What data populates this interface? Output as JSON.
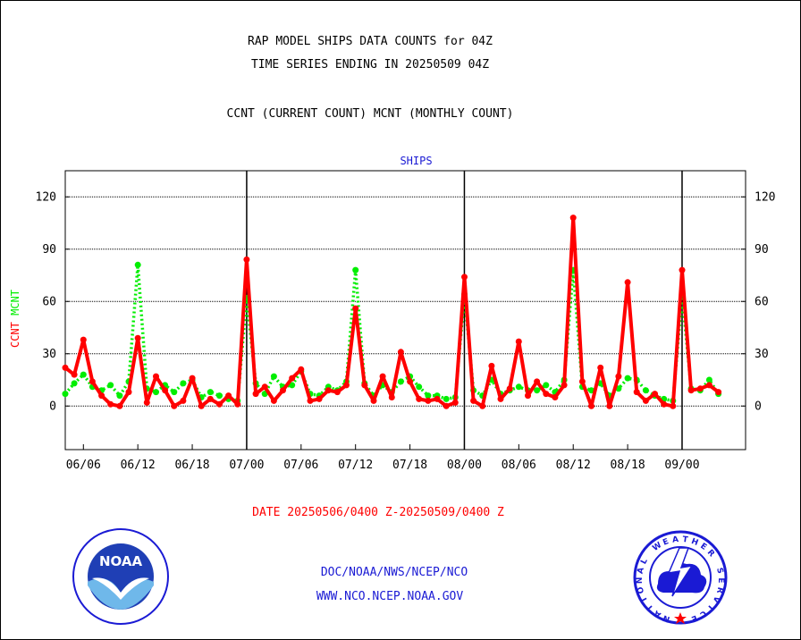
{
  "titles": {
    "line1": "RAP MODEL SHIPS DATA COUNTS for 04Z",
    "line2": "TIME SERIES ENDING IN 20250509 04Z",
    "line3": "CCNT (CURRENT COUNT) MCNT (MONTHLY COUNT)"
  },
  "date_range": "DATE 20250506/0400 Z-20250509/0400 Z",
  "footer": {
    "org": "DOC/NOAA/NWS/NCEP/NCO",
    "url": "WWW.NCO.NCEP.NOAA.GOV"
  },
  "logos": {
    "noaa_text": "NOAA",
    "nws_text": "NATIONAL WEATHER SERVICE"
  },
  "colors": {
    "ccnt": "#ff0000",
    "mcnt": "#00ee00",
    "panel_title": "#1a1ad4",
    "date_text": "#ff0000"
  },
  "chart_data": {
    "type": "line",
    "title": "SHIPS",
    "ylabel_parts": [
      {
        "text": "CCNT",
        "color": "#ff0000"
      },
      {
        "text": "MCNT",
        "color": "#00ee00"
      }
    ],
    "xlim": [
      0,
      75
    ],
    "ylim": [
      -25,
      135
    ],
    "yticks": [
      0,
      30,
      60,
      90,
      120
    ],
    "xticks": [
      {
        "x": 2,
        "label": "06/06"
      },
      {
        "x": 8,
        "label": "06/12"
      },
      {
        "x": 14,
        "label": "06/18"
      },
      {
        "x": 20,
        "label": "07/00"
      },
      {
        "x": 26,
        "label": "07/06"
      },
      {
        "x": 32,
        "label": "07/12"
      },
      {
        "x": 38,
        "label": "07/18"
      },
      {
        "x": 44,
        "label": "08/00"
      },
      {
        "x": 50,
        "label": "08/06"
      },
      {
        "x": 56,
        "label": "08/12"
      },
      {
        "x": 62,
        "label": "08/18"
      },
      {
        "x": 68,
        "label": "09/00"
      }
    ],
    "day_lines": [
      20,
      44,
      68
    ],
    "grid": true,
    "series": [
      {
        "name": "CCNT",
        "color": "#ff0000",
        "style": "solid",
        "values": [
          22,
          18,
          38,
          14,
          6,
          1,
          0,
          8,
          39,
          2,
          17,
          9,
          0,
          3,
          16,
          0,
          4,
          1,
          6,
          1,
          84,
          7,
          11,
          3,
          9,
          16,
          21,
          3,
          4,
          9,
          8,
          12,
          56,
          12,
          3,
          17,
          5,
          31,
          14,
          4,
          3,
          4,
          0,
          2,
          74,
          3,
          0,
          23,
          4,
          10,
          37,
          6,
          14,
          7,
          5,
          12,
          108,
          14,
          0,
          22,
          0,
          17,
          71,
          8,
          3,
          7,
          1,
          0,
          78,
          9,
          10,
          12,
          8
        ]
      },
      {
        "name": "MCNT",
        "color": "#00ee00",
        "style": "dotted",
        "values": [
          7,
          13,
          18,
          11,
          9,
          12,
          6,
          14,
          81,
          10,
          8,
          12,
          8,
          13,
          15,
          5,
          8,
          6,
          4,
          3,
          62,
          13,
          7,
          17,
          11,
          12,
          20,
          7,
          6,
          11,
          9,
          14,
          78,
          13,
          6,
          12,
          8,
          14,
          17,
          11,
          6,
          6,
          4,
          5,
          64,
          9,
          6,
          15,
          7,
          9,
          11,
          9,
          9,
          12,
          8,
          15,
          78,
          11,
          9,
          13,
          6,
          10,
          16,
          15,
          9,
          6,
          4,
          3,
          64,
          10,
          9,
          15,
          7
        ]
      }
    ]
  }
}
